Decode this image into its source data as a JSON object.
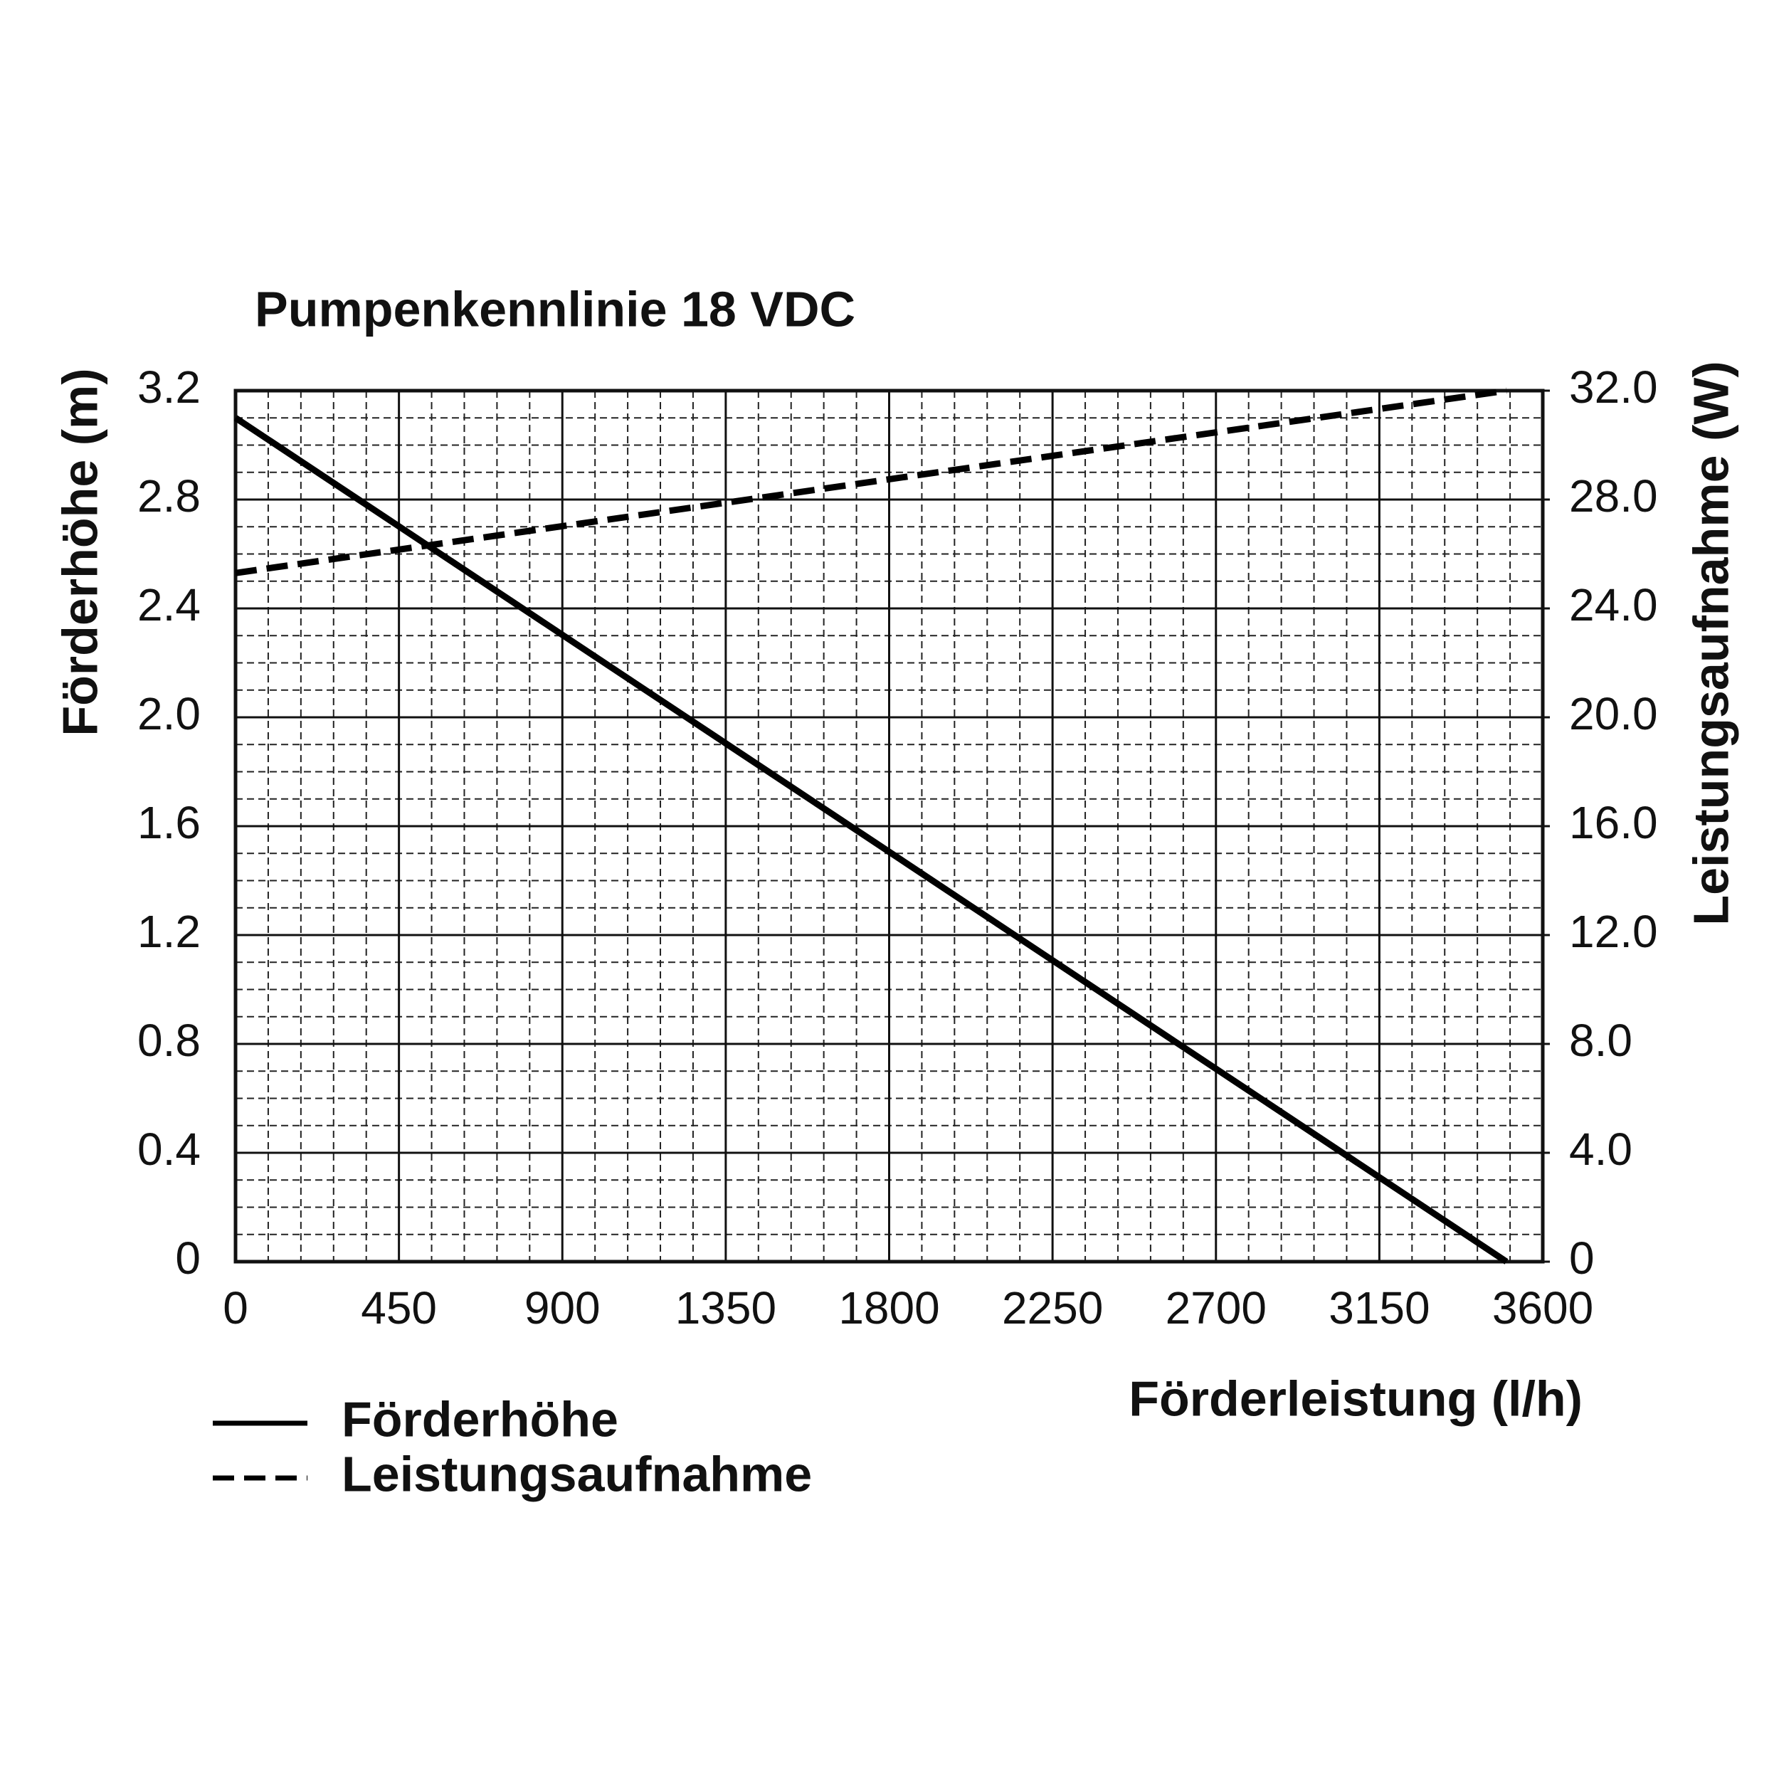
{
  "chart_data": {
    "type": "line",
    "title": "Pumpenkennlinie 18 VDC",
    "x_label": "Förderleistung (l/h)",
    "y_label": "Förderhöhe (m)",
    "y2_label": "Leistungsaufnahme (W)",
    "x": [
      0,
      3500
    ],
    "series": [
      {
        "name": "Förderhöhe",
        "color": "#000000",
        "line_style": "solid",
        "values": [
          3.1,
          0
        ]
      },
      {
        "name": "Leistungsaufnahme",
        "color": "#000000",
        "line_style": "dashed",
        "axis": "y2",
        "values": [
          25.3,
          32
        ]
      }
    ],
    "xlim": [
      0,
      3600
    ],
    "xticks": [
      0,
      450,
      900,
      1350,
      1800,
      2250,
      2700,
      3150,
      3600
    ],
    "ylim": [
      0,
      3.2
    ],
    "yticks": [
      0,
      0.4,
      0.8,
      1.2,
      1.6,
      {
        "value": 2,
        "label": "2.0"
      },
      2.4,
      2.8,
      3.2
    ],
    "y2lim": [
      0,
      32
    ],
    "y2ticks": [
      0,
      {
        "value": 4,
        "label": "4.0"
      },
      {
        "value": 8,
        "label": "8.0"
      },
      {
        "value": 12,
        "label": "12.0"
      },
      {
        "value": 16,
        "label": "16.0"
      },
      {
        "value": 20,
        "label": "20.0"
      },
      {
        "value": 24,
        "label": "24.0"
      },
      {
        "value": 28,
        "label": "28.0"
      },
      {
        "value": 32,
        "label": "32.0"
      }
    ],
    "grid": true,
    "minor_grid": true,
    "legend": "bottom-left"
  }
}
